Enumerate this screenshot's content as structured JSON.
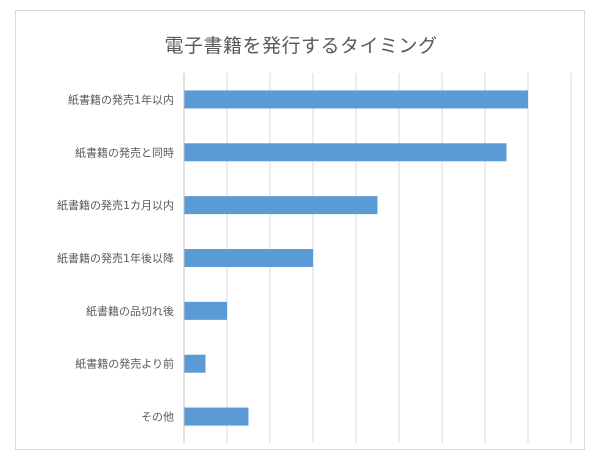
{
  "chart_data": {
    "type": "bar",
    "orientation": "horizontal",
    "title": "電子書籍を発行するタイミング",
    "categories": [
      "紙書籍の発売1年以内",
      "紙書籍の発売と同時",
      "紙書籍の発売1カ月以内",
      "紙書籍の発売1年後以降",
      "紙書籍の品切れ後",
      "紙書籍の発売より前",
      "その他"
    ],
    "values": [
      80,
      75,
      45,
      30,
      10,
      5,
      15
    ],
    "xlim": [
      0,
      90
    ],
    "grid": "vertical",
    "bar_color": "#5b9bd5",
    "grid_color": "#d9d9d9",
    "tick_labels_visible": false,
    "legend": "none"
  }
}
